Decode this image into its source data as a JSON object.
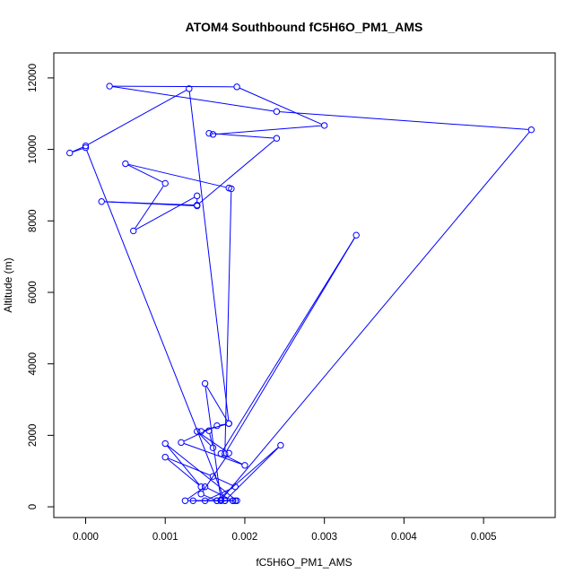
{
  "chart_data": {
    "type": "line",
    "title": "ATOM4 Southbound fC5H6O_PM1_AMS",
    "xlabel": "fC5H6O_PM1_AMS",
    "ylabel": "Altitude (m)",
    "xlim": [
      -0.0004,
      0.0059
    ],
    "ylim": [
      -300,
      12700
    ],
    "x_ticks": [
      0.0,
      0.001,
      0.002,
      0.003,
      0.004,
      0.005
    ],
    "x_tick_labels": [
      "0.000",
      "0.001",
      "0.002",
      "0.003",
      "0.004",
      "0.005"
    ],
    "y_ticks": [
      0,
      2000,
      4000,
      6000,
      8000,
      10000,
      12000
    ],
    "y_tick_labels": [
      "0",
      "2000",
      "4000",
      "6000",
      "8000",
      "10000",
      "12000"
    ],
    "grid": false,
    "marker": "open-circle",
    "colors": {
      "series": "#0000ff",
      "axes": "#000000",
      "background": "#ffffff"
    },
    "series": [
      {
        "points": [
          [
            0.00188,
            170
          ],
          [
            0.0017,
            170
          ],
          [
            0.0015,
            170
          ],
          [
            0.00188,
            560
          ],
          [
            0.0016,
            850
          ],
          [
            0.001,
            1390
          ],
          [
            0.00145,
            560
          ],
          [
            0.001,
            1770
          ],
          [
            0.0019,
            170
          ],
          [
            0.00175,
            170
          ],
          [
            0.00135,
            170
          ],
          [
            0.00185,
            170
          ],
          [
            0.0015,
            560
          ],
          [
            0.00125,
            170
          ],
          [
            0.00185,
            170
          ],
          [
            0.00165,
            170
          ],
          [
            0.00145,
            360
          ],
          [
            0.0018,
            1500
          ],
          [
            0.0014,
            2110
          ],
          [
            0.0016,
            1650
          ],
          [
            0.00155,
            2130
          ],
          [
            0.00145,
            2110
          ],
          [
            0.0018,
            2330
          ],
          [
            0.00165,
            2270
          ],
          [
            0.0012,
            1800
          ],
          [
            0.002,
            1160
          ],
          [
            0.0017,
            1490
          ],
          [
            0.0034,
            7600
          ],
          [
            0.00175,
            1480
          ],
          [
            0.00183,
            8900
          ],
          [
            0.0018,
            8920
          ],
          [
            0.0005,
            9600
          ],
          [
            0.001,
            9050
          ],
          [
            0.0006,
            7720
          ],
          [
            0.0014,
            8700
          ],
          [
            0.0014,
            8420
          ],
          [
            0.0002,
            8540
          ],
          [
            0.0014,
            8440
          ],
          [
            0.0024,
            10310
          ],
          [
            0.00155,
            10450
          ],
          [
            0.0016,
            10420
          ],
          [
            0.003,
            10670
          ],
          [
            0.0019,
            11750
          ],
          [
            0.0003,
            11770
          ],
          [
            0.0024,
            11060
          ],
          [
            0.0056,
            10550
          ],
          [
            0.0017,
            190
          ],
          [
            0.0015,
            3450
          ],
          [
            0.0018,
            2330
          ],
          [
            0.0013,
            11700
          ],
          [
            0.0,
            10100
          ],
          [
            -0.0002,
            9900
          ],
          [
            0.0,
            10050
          ],
          [
            0.00175,
            170
          ],
          [
            0.00245,
            1720
          ],
          [
            0.00165,
            170
          ]
        ]
      }
    ]
  }
}
